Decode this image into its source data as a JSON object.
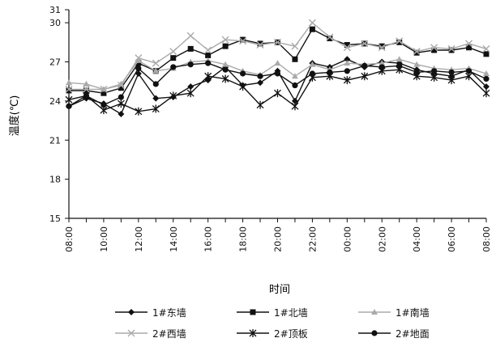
{
  "chart_data": {
    "type": "line",
    "ylabel": "温度(℃)",
    "xlabel": "时间",
    "ylim": [
      15,
      31
    ],
    "yticks": [
      "15",
      "18",
      "21",
      "24",
      "27",
      "30",
      "31"
    ],
    "x": [
      "08:00",
      "09:00",
      "10:00",
      "11:00",
      "12:00",
      "13:00",
      "14:00",
      "15:00",
      "16:00",
      "17:00",
      "18:00",
      "19:00",
      "20:00",
      "21:00",
      "22:00",
      "23:00",
      "00:00",
      "01:00",
      "02:00",
      "03:00",
      "04:00",
      "05:00",
      "06:00",
      "07:00",
      "08:00"
    ],
    "xtick_labels": [
      "08:00",
      "10:00",
      "12:00",
      "14:00",
      "16:00",
      "18:00",
      "20:00",
      "22:00",
      "00:00",
      "02:00",
      "04:00",
      "06:00",
      "08:00"
    ],
    "series": [
      {
        "name": "1#东墙",
        "marker": "diamond",
        "line": "solid",
        "color": "#111111",
        "values": [
          23.6,
          24.2,
          23.8,
          23.0,
          26.1,
          24.2,
          24.3,
          25.1,
          25.6,
          26.6,
          25.2,
          25.4,
          26.3,
          24.0,
          26.9,
          26.6,
          27.2,
          26.6,
          27.0,
          26.9,
          26.4,
          26.1,
          25.9,
          26.4,
          25.1
        ]
      },
      {
        "name": "1#北墙",
        "marker": "square",
        "line": "solid",
        "color": "#111111",
        "values": [
          24.8,
          24.8,
          24.6,
          25.0,
          26.9,
          26.3,
          27.3,
          28.0,
          27.5,
          28.2,
          28.7,
          28.4,
          28.5,
          27.2,
          29.5,
          28.8,
          28.3,
          28.4,
          28.2,
          28.5,
          27.7,
          27.9,
          27.9,
          28.1,
          27.6
        ]
      },
      {
        "name": "1#南墙",
        "marker": "triangle",
        "line": "solid",
        "color": "#aaaaaa",
        "values": [
          25.4,
          25.3,
          24.9,
          25.3,
          27.1,
          26.3,
          26.5,
          27.0,
          27.1,
          26.8,
          26.3,
          26.0,
          26.9,
          25.9,
          26.8,
          26.4,
          26.9,
          26.8,
          26.9,
          27.2,
          26.8,
          26.5,
          26.4,
          26.5,
          26.1
        ]
      },
      {
        "name": "2#西墙",
        "marker": "cross",
        "line": "solid",
        "color": "#aaaaaa",
        "values": [
          24.9,
          24.9,
          24.9,
          25.2,
          27.3,
          26.9,
          27.8,
          29.0,
          27.9,
          28.7,
          28.6,
          28.3,
          28.5,
          28.2,
          30.0,
          28.9,
          28.1,
          28.4,
          28.1,
          28.6,
          27.8,
          28.1,
          28.0,
          28.4,
          28.0
        ]
      },
      {
        "name": "2#顶板",
        "marker": "star",
        "line": "solid",
        "color": "#111111",
        "values": [
          24.1,
          24.4,
          23.3,
          23.8,
          23.2,
          23.4,
          24.4,
          24.6,
          25.9,
          25.7,
          25.1,
          23.7,
          24.6,
          23.6,
          25.8,
          25.9,
          25.6,
          25.9,
          26.3,
          26.4,
          25.9,
          25.8,
          25.6,
          25.9,
          24.6
        ]
      },
      {
        "name": "2#地面",
        "marker": "circle",
        "line": "solid",
        "color": "#111111",
        "values": [
          23.6,
          24.4,
          23.7,
          24.3,
          26.5,
          25.3,
          26.6,
          26.8,
          26.9,
          26.4,
          26.1,
          25.9,
          26.1,
          25.2,
          26.1,
          26.2,
          26.3,
          26.7,
          26.6,
          26.7,
          26.2,
          26.3,
          26.2,
          26.3,
          25.7
        ]
      }
    ],
    "grid": false,
    "legend_position": "bottom"
  }
}
